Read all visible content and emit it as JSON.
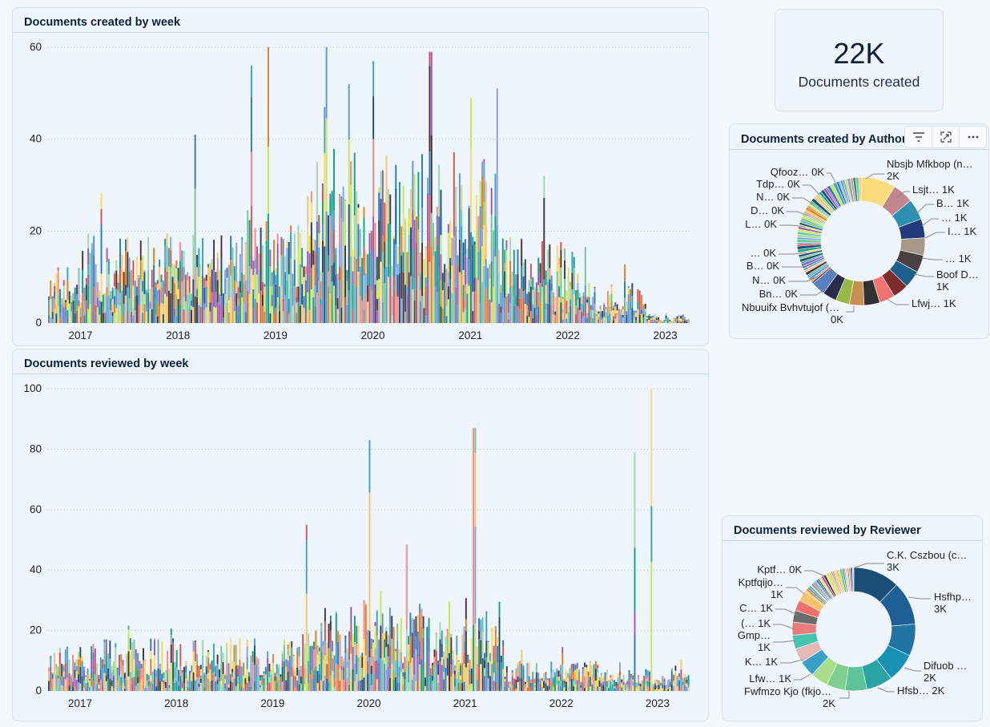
{
  "kpi": {
    "value": "22K",
    "label": "Documents created"
  },
  "colors": {
    "palette": [
      "#1f4e79",
      "#f28b82",
      "#77c69a",
      "#3aa0c8",
      "#4a3535",
      "#f7c46c",
      "#9b59b6",
      "#2e7bb5",
      "#e67e22",
      "#c7e84f",
      "#8aa2d8",
      "#16a085",
      "#d35454",
      "#5b9bd5",
      "#ffd966",
      "#a5d6a7"
    ]
  },
  "toolbar": {
    "filter_icon": "filter-icon",
    "focus_icon": "focus-mode-icon",
    "more_icon": "more-options-icon"
  },
  "chart_data": [
    {
      "type": "bar",
      "stacked": true,
      "title": "Documents created by week",
      "xlabel": "",
      "ylabel": "",
      "ylim": [
        0,
        60
      ],
      "yticks": [
        0,
        20,
        40,
        60
      ],
      "xticks": [
        "2017",
        "2018",
        "2019",
        "2020",
        "2021",
        "2022",
        "2023"
      ],
      "x_range": [
        "2016-09",
        "2023-04"
      ],
      "grid": true,
      "approx_weekly_peaks": [
        {
          "x": "2018-03",
          "y": 41
        },
        {
          "x": "2018-10",
          "y": 56
        },
        {
          "x": "2018-12",
          "y": 60
        },
        {
          "x": "2019-07",
          "y": 47
        },
        {
          "x": "2019-10",
          "y": 52
        },
        {
          "x": "2020-01",
          "y": 57
        },
        {
          "x": "2020-08",
          "y": 59
        },
        {
          "x": "2021-01",
          "y": 49
        },
        {
          "x": "2021-10",
          "y": 32
        }
      ]
    },
    {
      "type": "bar",
      "stacked": true,
      "title": "Documents reviewed by week",
      "xlabel": "",
      "ylabel": "",
      "ylim": [
        0,
        100
      ],
      "yticks": [
        0,
        20,
        40,
        60,
        80,
        100
      ],
      "xticks": [
        "2017",
        "2018",
        "2019",
        "2020",
        "2021",
        "2022",
        "2023"
      ],
      "x_range": [
        "2016-09",
        "2023-05"
      ],
      "grid": true,
      "approx_weekly_peaks": [
        {
          "x": "2020-01",
          "y": 83
        },
        {
          "x": "2021-02",
          "y": 87
        },
        {
          "x": "2019-05",
          "y": 55
        },
        {
          "x": "2022-10",
          "y": 79
        },
        {
          "x": "2022-12",
          "y": 100
        }
      ]
    },
    {
      "type": "pie",
      "donut": true,
      "title": "Documents created by Author",
      "labels": [
        {
          "name": "Nbsjb Mfkbop (n…",
          "value": "2K"
        },
        {
          "name": "Lsjt…",
          "value": "1K"
        },
        {
          "name": "B…",
          "value": "1K"
        },
        {
          "name": "…",
          "value": "1K"
        },
        {
          "name": "I…",
          "value": "1K"
        },
        {
          "name": "…",
          "value": "1K"
        },
        {
          "name": "Boof D…",
          "value": "1K"
        },
        {
          "name": "Lfwj…",
          "value": "1K"
        },
        {
          "name": "Nbuuifx Bvhvtujof (…",
          "value": "0K"
        },
        {
          "name": "Bn…",
          "value": "0K"
        },
        {
          "name": "N…",
          "value": "0K"
        },
        {
          "name": "B…",
          "value": "0K"
        },
        {
          "name": "…",
          "value": "0K"
        },
        {
          "name": "L…",
          "value": "0K"
        },
        {
          "name": "D…",
          "value": "0K"
        },
        {
          "name": "N…",
          "value": "0K"
        },
        {
          "name": "Tdp…",
          "value": "0K"
        },
        {
          "name": "Qfooz…",
          "value": "0K"
        }
      ],
      "slices": [
        {
          "value": 2.0,
          "color": "#fbdb7b"
        },
        {
          "value": 1.2,
          "color": "#c2868f"
        },
        {
          "value": 1.2,
          "color": "#2e8fb0"
        },
        {
          "value": 1.1,
          "color": "#243a7a"
        },
        {
          "value": 1.0,
          "color": "#a89888"
        },
        {
          "value": 1.0,
          "color": "#4b4040"
        },
        {
          "value": 1.0,
          "color": "#1f5f8b"
        },
        {
          "value": 0.9,
          "color": "#7b2c2c"
        },
        {
          "value": 0.9,
          "color": "#f07474"
        },
        {
          "value": 0.9,
          "color": "#323232"
        },
        {
          "value": 0.85,
          "color": "#c89050"
        },
        {
          "value": 0.8,
          "color": "#98b846"
        },
        {
          "value": 0.8,
          "color": "#2b2b4a"
        },
        {
          "value": 0.8,
          "color": "#5a80c0"
        }
      ],
      "small_slices_count": 60
    },
    {
      "type": "pie",
      "donut": true,
      "title": "Documents reviewed by Reviewer",
      "labels": [
        {
          "name": "C.K. Cszbou (c…",
          "value": "3K"
        },
        {
          "name": "Hsfhp…",
          "value": "3K"
        },
        {
          "name": "Difuob …",
          "value": "2K"
        },
        {
          "name": "Hfsb…",
          "value": "2K"
        },
        {
          "name": "Fwfmzo Kjo (fkjo…",
          "value": "2K"
        },
        {
          "name": "Lfw…",
          "value": "1K"
        },
        {
          "name": "K…",
          "value": "1K"
        },
        {
          "name": "Gmp…",
          "value": "1K"
        },
        {
          "name": "(…",
          "value": "1K"
        },
        {
          "name": "C…",
          "value": "1K"
        },
        {
          "name": "Kptfqijo…",
          "value": "1K"
        },
        {
          "name": "Kptf…",
          "value": "0K"
        }
      ],
      "slices": [
        {
          "value": 3.2,
          "color": "#1a4e78"
        },
        {
          "value": 3.0,
          "color": "#1f5f95"
        },
        {
          "value": 2.2,
          "color": "#1f74a4"
        },
        {
          "value": 2.0,
          "color": "#1890b4"
        },
        {
          "value": 1.8,
          "color": "#2aa3a3"
        },
        {
          "value": 1.5,
          "color": "#5cc39a"
        },
        {
          "value": 1.3,
          "color": "#7fd08c"
        },
        {
          "value": 1.2,
          "color": "#a8de8a"
        },
        {
          "value": 1.1,
          "color": "#3aa0c8"
        },
        {
          "value": 1.0,
          "color": "#e3b9b8"
        },
        {
          "value": 0.95,
          "color": "#47c4b0"
        },
        {
          "value": 0.9,
          "color": "#e87b7b"
        },
        {
          "value": 0.8,
          "color": "#6b6b6b"
        },
        {
          "value": 0.75,
          "color": "#f07070"
        },
        {
          "value": 0.7,
          "color": "#f7c46c"
        }
      ],
      "small_slices_count": 30
    }
  ]
}
